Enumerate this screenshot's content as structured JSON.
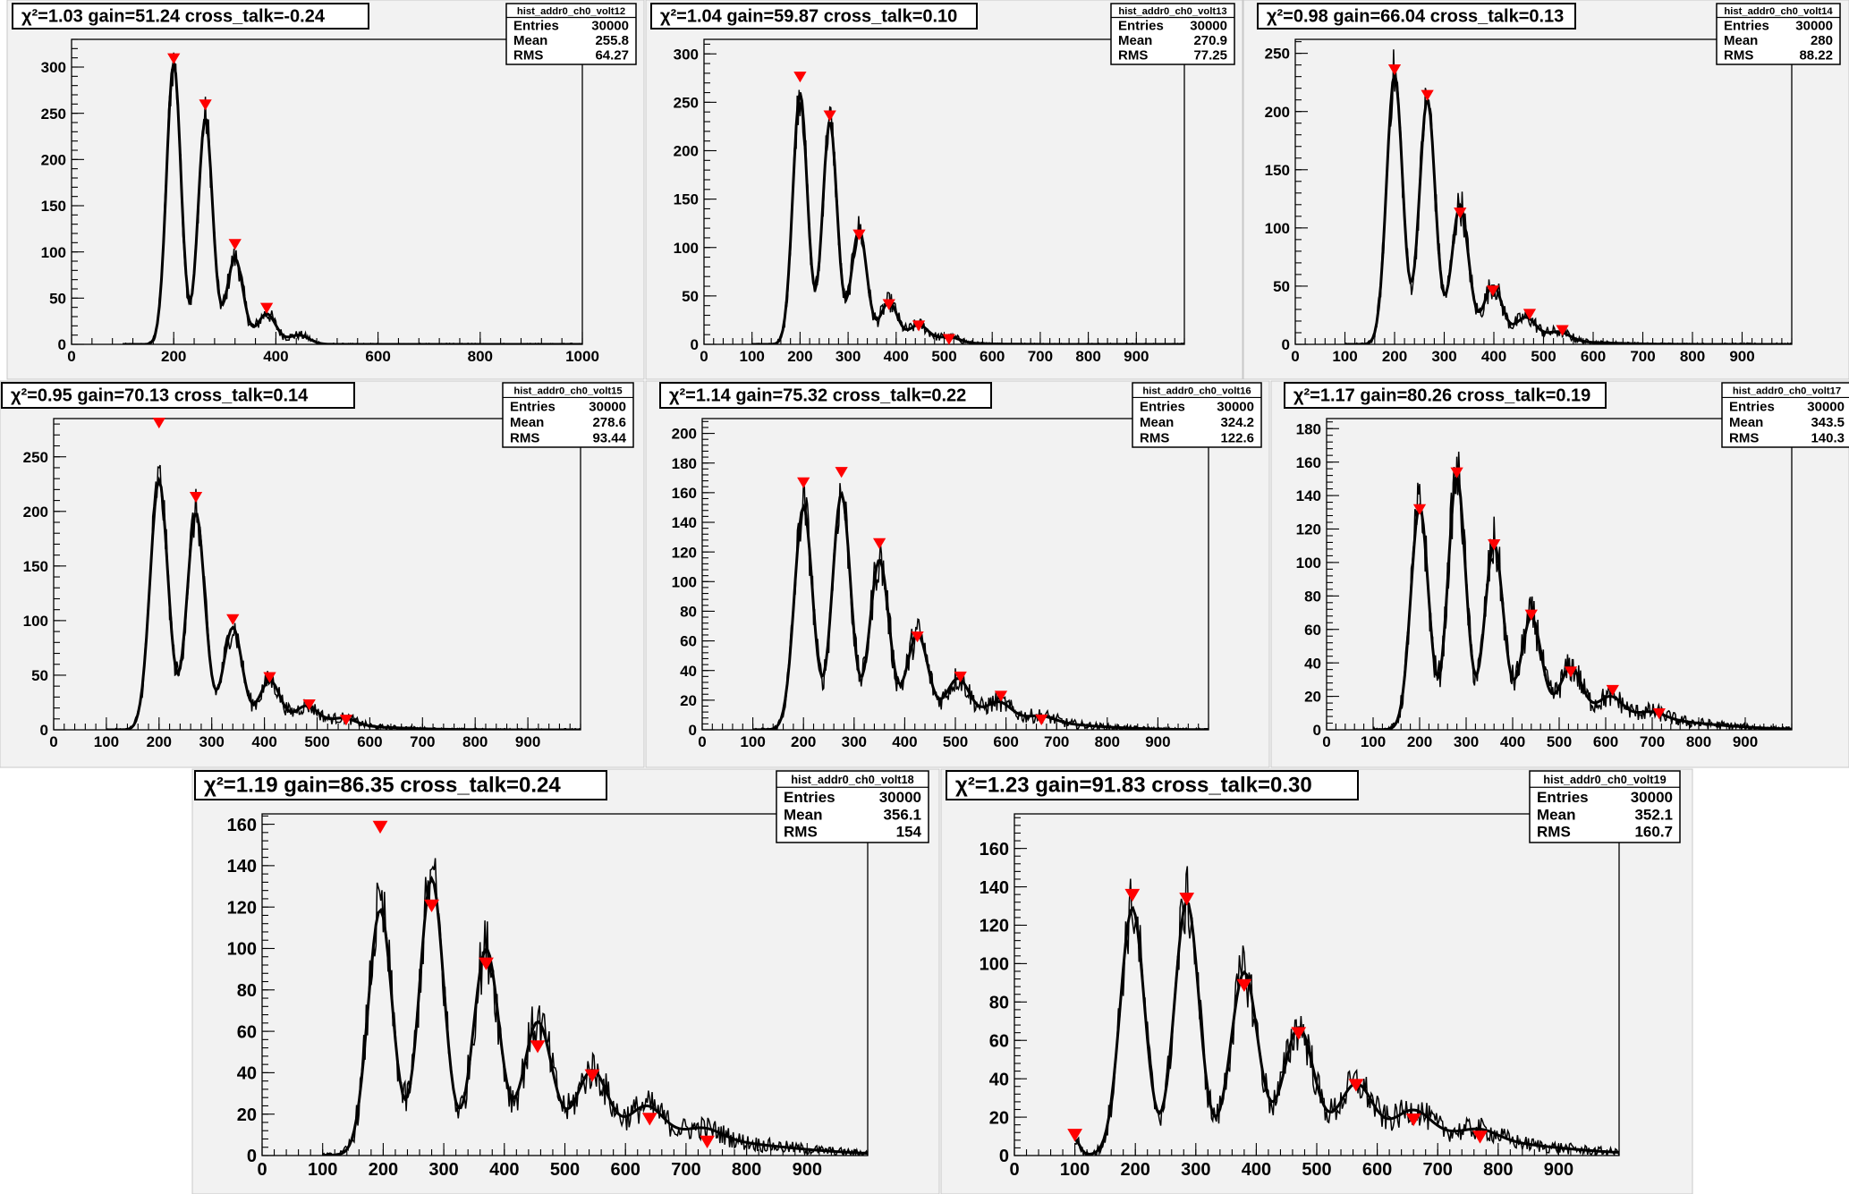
{
  "chart_data": [
    {
      "type": "line",
      "title": "χ²=1.03 gain=51.24 cross_talk=-0.24",
      "stats": {
        "name": "hist_addr0_ch0_volt12",
        "entries": "30000",
        "mean": "255.8",
        "rms": "64.27"
      },
      "stat_labels": [
        "Entries",
        "Mean",
        "RMS"
      ],
      "xlim": [
        0,
        1000
      ],
      "ylim": [
        0,
        330
      ],
      "xticks": [
        0,
        200,
        400,
        600,
        800,
        1000
      ],
      "yticks": [
        0,
        50,
        100,
        150,
        200,
        250,
        300
      ],
      "grid": false,
      "components": {
        "start": 100,
        "end": 1000,
        "tail_amp": 0,
        "tail_center": 0,
        "tail_width": 1,
        "peaks": [
          [
            200,
            305,
            14
          ],
          [
            262,
            245,
            14
          ],
          [
            320,
            93,
            16
          ],
          [
            382,
            33,
            18
          ],
          [
            445,
            10,
            20
          ]
        ]
      },
      "peak_markers": [
        [
          200,
          308
        ],
        [
          262,
          258
        ],
        [
          320,
          107
        ],
        [
          382,
          38
        ]
      ]
    },
    {
      "type": "line",
      "title": "χ²=1.04 gain=59.87 cross_talk=0.10",
      "stats": {
        "name": "hist_addr0_ch0_volt13",
        "entries": "30000",
        "mean": "270.9",
        "rms": "77.25"
      },
      "stat_labels": [
        "Entries",
        "Mean",
        "RMS"
      ],
      "xlim": [
        0,
        1000
      ],
      "ylim": [
        0,
        315
      ],
      "xticks": [
        0,
        100,
        200,
        300,
        400,
        500,
        600,
        700,
        800,
        900
      ],
      "yticks": [
        0,
        50,
        100,
        150,
        200,
        250,
        300
      ],
      "grid": false,
      "components": {
        "start": 100,
        "end": 1000,
        "tail_amp": 2,
        "tail_center": 450,
        "tail_width": 90,
        "peaks": [
          [
            200,
            260,
            15
          ],
          [
            262,
            230,
            15
          ],
          [
            323,
            118,
            16
          ],
          [
            385,
            42,
            18
          ],
          [
            447,
            18,
            20
          ],
          [
            510,
            6,
            22
          ]
        ]
      },
      "peak_markers": [
        [
          200,
          275
        ],
        [
          262,
          235
        ],
        [
          323,
          112
        ],
        [
          385,
          40
        ],
        [
          447,
          18
        ],
        [
          510,
          4
        ]
      ]
    },
    {
      "type": "line",
      "title": "χ²=0.98 gain=66.04 cross_talk=0.13",
      "stats": {
        "name": "hist_addr0_ch0_volt14",
        "entries": "30000",
        "mean": "280",
        "rms": "88.22"
      },
      "stat_labels": [
        "Entries",
        "Mean",
        "RMS"
      ],
      "xlim": [
        0,
        1000
      ],
      "ylim": [
        0,
        262
      ],
      "xticks": [
        0,
        100,
        200,
        300,
        400,
        500,
        600,
        700,
        800,
        900
      ],
      "yticks": [
        0,
        50,
        100,
        150,
        200,
        250
      ],
      "grid": false,
      "components": {
        "start": 100,
        "end": 1000,
        "tail_amp": 3,
        "tail_center": 480,
        "tail_width": 110,
        "peaks": [
          [
            200,
            232,
            16
          ],
          [
            266,
            210,
            16
          ],
          [
            332,
            118,
            17
          ],
          [
            398,
            48,
            19
          ],
          [
            464,
            20,
            21
          ],
          [
            530,
            8,
            23
          ]
        ]
      },
      "peak_markers": [
        [
          200,
          235
        ],
        [
          266,
          213
        ],
        [
          332,
          112
        ],
        [
          398,
          45
        ],
        [
          472,
          25
        ],
        [
          538,
          11
        ]
      ]
    },
    {
      "type": "line",
      "title": "χ²=0.95 gain=70.13 cross_talk=0.14",
      "stats": {
        "name": "hist_addr0_ch0_volt15",
        "entries": "30000",
        "mean": "278.6",
        "rms": "93.44"
      },
      "stat_labels": [
        "Entries",
        "Mean",
        "RMS"
      ],
      "xlim": [
        0,
        1000
      ],
      "ylim": [
        0,
        285
      ],
      "xticks": [
        0,
        100,
        200,
        300,
        400,
        500,
        600,
        700,
        800,
        900
      ],
      "yticks": [
        0,
        50,
        100,
        150,
        200,
        250
      ],
      "grid": false,
      "components": {
        "start": 100,
        "end": 1000,
        "tail_amp": 4,
        "tail_center": 500,
        "tail_width": 120,
        "peaks": [
          [
            200,
            228,
            17
          ],
          [
            270,
            198,
            17
          ],
          [
            340,
            92,
            18
          ],
          [
            410,
            42,
            20
          ],
          [
            480,
            18,
            22
          ],
          [
            550,
            7,
            24
          ]
        ]
      },
      "peak_markers": [
        [
          200,
          280
        ],
        [
          270,
          212
        ],
        [
          340,
          100
        ],
        [
          410,
          47
        ],
        [
          485,
          22
        ],
        [
          555,
          8
        ]
      ]
    },
    {
      "type": "line",
      "title": "χ²=1.14 gain=75.32 cross_talk=0.22",
      "stats": {
        "name": "hist_addr0_ch0_volt16",
        "entries": "30000",
        "mean": "324.2",
        "rms": "122.6"
      },
      "stat_labels": [
        "Entries",
        "Mean",
        "RMS"
      ],
      "xlim": [
        0,
        1000
      ],
      "ylim": [
        0,
        210
      ],
      "xticks": [
        0,
        100,
        200,
        300,
        400,
        500,
        600,
        700,
        800,
        900
      ],
      "yticks": [
        0,
        20,
        40,
        60,
        80,
        100,
        120,
        140,
        160,
        180,
        200
      ],
      "grid": false,
      "components": {
        "start": 100,
        "end": 1000,
        "tail_amp": 7,
        "tail_center": 560,
        "tail_width": 150,
        "peaks": [
          [
            200,
            150,
            18
          ],
          [
            275,
            158,
            18
          ],
          [
            350,
            112,
            19
          ],
          [
            425,
            60,
            21
          ],
          [
            505,
            28,
            23
          ],
          [
            585,
            12,
            25
          ],
          [
            670,
            4,
            27
          ]
        ]
      },
      "peak_markers": [
        [
          200,
          166
        ],
        [
          275,
          173
        ],
        [
          350,
          125
        ],
        [
          425,
          62
        ],
        [
          510,
          35
        ],
        [
          590,
          22
        ],
        [
          670,
          6
        ]
      ]
    },
    {
      "type": "line",
      "title": "χ²=1.17 gain=80.26 cross_talk=0.19",
      "stats": {
        "name": "hist_addr0_ch0_volt17",
        "entries": "30000",
        "mean": "343.5",
        "rms": "140.3"
      },
      "stat_labels": [
        "Entries",
        "Mean",
        "RMS"
      ],
      "xlim": [
        0,
        1000
      ],
      "ylim": [
        0,
        186
      ],
      "xticks": [
        0,
        100,
        200,
        300,
        400,
        500,
        600,
        700,
        800,
        900
      ],
      "yticks": [
        0,
        20,
        40,
        60,
        80,
        100,
        120,
        140,
        160,
        180
      ],
      "grid": false,
      "components": {
        "start": 100,
        "end": 1000,
        "tail_amp": 8,
        "tail_center": 600,
        "tail_width": 170,
        "peaks": [
          [
            200,
            133,
            19
          ],
          [
            280,
            150,
            19
          ],
          [
            360,
            108,
            20
          ],
          [
            440,
            62,
            22
          ],
          [
            525,
            30,
            24
          ],
          [
            610,
            12,
            26
          ],
          [
            700,
            4,
            28
          ]
        ]
      },
      "peak_markers": [
        [
          200,
          131
        ],
        [
          280,
          153
        ],
        [
          360,
          110
        ],
        [
          440,
          68
        ],
        [
          525,
          34
        ],
        [
          615,
          23
        ],
        [
          715,
          9
        ]
      ]
    },
    {
      "type": "line",
      "title": "χ²=1.19 gain=86.35 cross_talk=0.24",
      "stats": {
        "name": "hist_addr0_ch0_volt18",
        "entries": "30000",
        "mean": "356.1",
        "rms": "154"
      },
      "stat_labels": [
        "Entries",
        "Mean",
        "RMS"
      ],
      "xlim": [
        0,
        1000
      ],
      "ylim": [
        0,
        165
      ],
      "xticks": [
        0,
        100,
        200,
        300,
        400,
        500,
        600,
        700,
        800,
        900
      ],
      "yticks": [
        0,
        20,
        40,
        60,
        80,
        100,
        120,
        140,
        160
      ],
      "grid": false,
      "components": {
        "start": 100,
        "end": 1000,
        "tail_amp": 10,
        "tail_center": 620,
        "tail_width": 180,
        "peaks": [
          [
            195,
            118,
            20
          ],
          [
            280,
            132,
            20
          ],
          [
            370,
            96,
            21
          ],
          [
            455,
            58,
            23
          ],
          [
            545,
            32,
            25
          ],
          [
            635,
            14,
            27
          ],
          [
            730,
            5,
            29
          ]
        ]
      },
      "peak_markers": [
        [
          195,
          158
        ],
        [
          280,
          120
        ],
        [
          370,
          92
        ],
        [
          455,
          52
        ],
        [
          545,
          38
        ],
        [
          640,
          17
        ],
        [
          735,
          6
        ]
      ]
    },
    {
      "type": "line",
      "title": "χ²=1.23 gain=91.83 cross_talk=0.30",
      "stats": {
        "name": "hist_addr0_ch0_volt19",
        "entries": "30000",
        "mean": "352.1",
        "rms": "160.7"
      },
      "stat_labels": [
        "Entries",
        "Mean",
        "RMS"
      ],
      "xlim": [
        0,
        1000
      ],
      "ylim": [
        0,
        178
      ],
      "xticks": [
        0,
        100,
        200,
        300,
        400,
        500,
        600,
        700,
        800,
        900
      ],
      "yticks": [
        0,
        20,
        40,
        60,
        80,
        100,
        120,
        140,
        160
      ],
      "grid": false,
      "components": {
        "start": 100,
        "end": 1000,
        "tail_amp": 12,
        "tail_center": 620,
        "tail_width": 190,
        "peaks": [
          [
            100,
            8,
            8
          ],
          [
            195,
            128,
            20
          ],
          [
            285,
            130,
            20
          ],
          [
            380,
            90,
            22
          ],
          [
            470,
            58,
            24
          ],
          [
            565,
            26,
            26
          ],
          [
            660,
            12,
            28
          ],
          [
            770,
            5,
            30
          ]
        ]
      },
      "peak_markers": [
        [
          100,
          10
        ],
        [
          195,
          135
        ],
        [
          285,
          133
        ],
        [
          380,
          88
        ],
        [
          470,
          63
        ],
        [
          565,
          36
        ],
        [
          660,
          18
        ],
        [
          770,
          9
        ]
      ]
    }
  ]
}
